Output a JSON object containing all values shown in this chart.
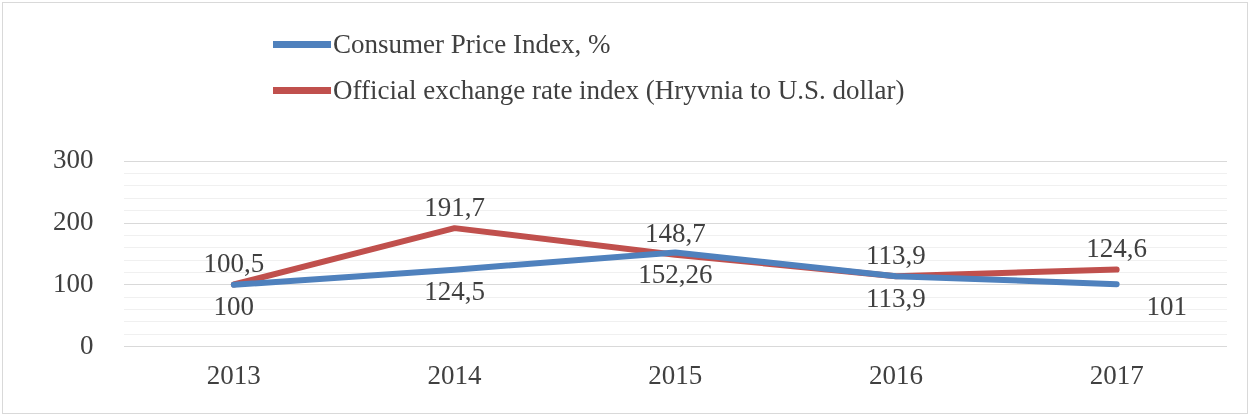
{
  "chart_data": {
    "type": "line",
    "categories": [
      "2013",
      "2014",
      "2015",
      "2016",
      "2017"
    ],
    "series": [
      {
        "name": "Consumer Price Index, %",
        "color": "#4f81bd",
        "values": [
          100,
          124.5,
          152.26,
          113.9,
          101
        ],
        "value_labels": [
          "100",
          "124,5",
          "152,26",
          "113,9",
          "101"
        ]
      },
      {
        "name": "Official exchange rate index (Hryvnia to U.S. dollar)",
        "color": "#c0504d",
        "values": [
          100.5,
          191.7,
          148.7,
          113.9,
          124.6
        ],
        "value_labels": [
          "100,5",
          "191,7",
          "148,7",
          "113,9",
          "124,6"
        ]
      }
    ],
    "ylim": [
      0,
      300
    ],
    "yticks": [
      0,
      {
        "value": 20,
        "label": null
      },
      {
        "value": 40,
        "label": null
      },
      {
        "value": 60,
        "label": null
      },
      {
        "value": 80,
        "label": null
      },
      100,
      {
        "value": 120,
        "label": null
      },
      {
        "value": 140,
        "label": null
      },
      {
        "value": 160,
        "label": null
      },
      {
        "value": 180,
        "label": null
      },
      200,
      {
        "value": 220,
        "label": null
      },
      {
        "value": 240,
        "label": null
      },
      {
        "value": 260,
        "label": null
      },
      {
        "value": 280,
        "label": null
      },
      300
    ],
    "grid": "y",
    "legend": "top",
    "marker": "none",
    "line_style": "solid"
  }
}
